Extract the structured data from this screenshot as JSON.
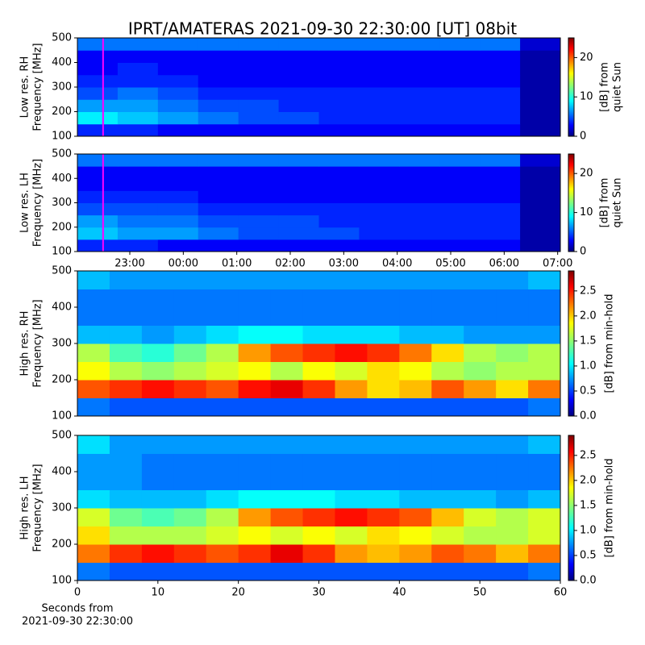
{
  "chart_data": [
    {
      "type": "heatmap",
      "title": "IPRT/AMATERAS 2021-09-30 22:30:00 [UT]   08bit",
      "ylabel": [
        "Low res. RH",
        "Frequency [MHz]"
      ],
      "ylim": [
        100,
        500
      ],
      "yticks": [
        100,
        200,
        300,
        400,
        500
      ],
      "xlim": [
        22.02,
        31.05
      ],
      "marker_x": 22.5,
      "marker_color": "#ff00ff",
      "colormap": "jet",
      "colorbar": {
        "label": [
          "[dB] from",
          "quiet Sun"
        ],
        "zlim": [
          0,
          25
        ],
        "ticks": [
          0,
          10,
          20
        ]
      },
      "z": [
        [
          4,
          4,
          3,
          3,
          3,
          3,
          3,
          3,
          3,
          3,
          3,
          1
        ],
        [
          9,
          8,
          7,
          6,
          5,
          5,
          4,
          4,
          4,
          4,
          4,
          1
        ],
        [
          7,
          7,
          6,
          5,
          5,
          4,
          4,
          4,
          4,
          4,
          4,
          1
        ],
        [
          5,
          6,
          5,
          4,
          4,
          4,
          4,
          4,
          4,
          4,
          4,
          1
        ],
        [
          4,
          4,
          4,
          3,
          3,
          3,
          3,
          3,
          3,
          3,
          3,
          1
        ],
        [
          3,
          4,
          3,
          3,
          3,
          3,
          3,
          3,
          3,
          3,
          3,
          1
        ],
        [
          3,
          3,
          3,
          3,
          3,
          3,
          3,
          3,
          3,
          3,
          3,
          1
        ],
        [
          6,
          6,
          6,
          6,
          6,
          6,
          6,
          6,
          6,
          6,
          6,
          2
        ]
      ]
    },
    {
      "type": "heatmap",
      "ylabel": [
        "Low res. LH",
        "Frequency [MHz]"
      ],
      "ylim": [
        100,
        500
      ],
      "yticks": [
        100,
        200,
        300,
        400,
        500
      ],
      "xlim": [
        22.02,
        31.05
      ],
      "marker_x": 22.5,
      "marker_color": "#ff00ff",
      "colormap": "jet",
      "xticks": [
        {
          "value": 23,
          "label": "23:00"
        },
        {
          "value": 24,
          "label": "00:00"
        },
        {
          "value": 25,
          "label": "01:00"
        },
        {
          "value": 26,
          "label": "02:00"
        },
        {
          "value": 27,
          "label": "03:00"
        },
        {
          "value": 28,
          "label": "04:00"
        },
        {
          "value": 29,
          "label": "05:00"
        },
        {
          "value": 30,
          "label": "06:00"
        },
        {
          "value": 31,
          "label": "07:00"
        }
      ],
      "colorbar": {
        "label": [
          "[dB] from",
          "quiet Sun"
        ],
        "zlim": [
          0,
          25
        ],
        "ticks": [
          0,
          10,
          20
        ]
      },
      "z": [
        [
          4,
          4,
          3,
          3,
          3,
          3,
          3,
          3,
          3,
          3,
          3,
          1
        ],
        [
          8,
          7,
          7,
          6,
          5,
          5,
          5,
          4,
          4,
          4,
          4,
          1
        ],
        [
          7,
          6,
          6,
          5,
          5,
          5,
          4,
          4,
          4,
          4,
          4,
          1
        ],
        [
          5,
          5,
          5,
          4,
          4,
          4,
          4,
          4,
          4,
          4,
          4,
          1
        ],
        [
          4,
          4,
          4,
          3,
          3,
          3,
          3,
          3,
          3,
          3,
          3,
          1
        ],
        [
          3,
          3,
          3,
          3,
          3,
          3,
          3,
          3,
          3,
          3,
          3,
          1
        ],
        [
          3,
          3,
          3,
          3,
          3,
          3,
          3,
          3,
          3,
          3,
          3,
          1
        ],
        [
          6,
          6,
          6,
          6,
          6,
          6,
          6,
          6,
          6,
          6,
          6,
          2
        ]
      ]
    },
    {
      "type": "heatmap",
      "ylabel": [
        "High res. RH",
        "Frequency [MHz]"
      ],
      "ylim": [
        100,
        500
      ],
      "yticks": [
        100,
        200,
        300,
        400,
        500
      ],
      "xlim": [
        0,
        60
      ],
      "colormap": "jet",
      "colorbar": {
        "label": [
          "[dB] from min-hold"
        ],
        "zlim": [
          0,
          2.9
        ],
        "ticks": [
          {
            "value": 0,
            "label": "0.0"
          },
          0.5,
          {
            "value": 1,
            "label": "1.0"
          },
          1.5,
          {
            "value": 2,
            "label": "2.0"
          },
          2.5
        ]
      },
      "z": [
        [
          0.7,
          0.6,
          0.6,
          0.6,
          0.6,
          0.6,
          0.6,
          0.6,
          0.6,
          0.6,
          0.6,
          0.6,
          0.6,
          0.6,
          0.7
        ],
        [
          2.3,
          2.4,
          2.5,
          2.4,
          2.3,
          2.5,
          2.6,
          2.4,
          2.1,
          1.9,
          2.0,
          2.3,
          2.1,
          1.9,
          2.2
        ],
        [
          1.8,
          1.6,
          1.5,
          1.6,
          1.7,
          1.8,
          1.6,
          1.8,
          1.7,
          1.9,
          1.8,
          1.6,
          1.5,
          1.6,
          1.6
        ],
        [
          1.6,
          1.3,
          1.2,
          1.4,
          1.6,
          2.1,
          2.3,
          2.4,
          2.5,
          2.4,
          2.2,
          1.9,
          1.6,
          1.5,
          1.6
        ],
        [
          0.9,
          0.9,
          0.8,
          0.9,
          1.0,
          1.1,
          1.1,
          1.0,
          1.0,
          1.0,
          0.9,
          0.9,
          0.8,
          0.8,
          0.8
        ],
        [
          0.7,
          0.7,
          0.7,
          0.7,
          0.7,
          0.7,
          0.7,
          0.7,
          0.7,
          0.7,
          0.7,
          0.7,
          0.7,
          0.7,
          0.7
        ],
        [
          0.7,
          0.7,
          0.7,
          0.7,
          0.7,
          0.7,
          0.7,
          0.7,
          0.7,
          0.7,
          0.7,
          0.7,
          0.7,
          0.7,
          0.7
        ],
        [
          0.9,
          0.8,
          0.8,
          0.8,
          0.8,
          0.8,
          0.8,
          0.8,
          0.8,
          0.8,
          0.8,
          0.8,
          0.8,
          0.8,
          0.9
        ]
      ]
    },
    {
      "type": "heatmap",
      "ylabel": [
        "High res. LH",
        "Frequency [MHz]"
      ],
      "ylim": [
        100,
        500
      ],
      "yticks": [
        100,
        200,
        300,
        400,
        500
      ],
      "xlim": [
        0,
        60
      ],
      "xticks": [
        0,
        10,
        20,
        30,
        40,
        50,
        60
      ],
      "xlabel": [
        "Seconds from",
        "2021-09-30 22:30:00"
      ],
      "colormap": "jet",
      "colorbar": {
        "label": [
          "[dB] from min-hold"
        ],
        "zlim": [
          0,
          2.9
        ],
        "ticks": [
          {
            "value": 0,
            "label": "0.0"
          },
          0.5,
          {
            "value": 1,
            "label": "1.0"
          },
          1.5,
          {
            "value": 2,
            "label": "2.0"
          },
          2.5
        ]
      },
      "z": [
        [
          0.7,
          0.6,
          0.6,
          0.6,
          0.6,
          0.6,
          0.6,
          0.6,
          0.6,
          0.6,
          0.6,
          0.6,
          0.6,
          0.6,
          0.7
        ],
        [
          2.2,
          2.4,
          2.5,
          2.4,
          2.3,
          2.4,
          2.6,
          2.4,
          2.1,
          2.0,
          2.1,
          2.3,
          2.2,
          2.0,
          2.2
        ],
        [
          1.9,
          1.6,
          1.6,
          1.6,
          1.7,
          1.8,
          1.7,
          1.8,
          1.7,
          1.9,
          1.8,
          1.7,
          1.6,
          1.6,
          1.7
        ],
        [
          1.7,
          1.4,
          1.3,
          1.4,
          1.6,
          2.1,
          2.3,
          2.4,
          2.5,
          2.4,
          2.3,
          2.0,
          1.7,
          1.6,
          1.7
        ],
        [
          1.0,
          0.9,
          0.9,
          0.9,
          1.0,
          1.1,
          1.1,
          1.1,
          1.0,
          1.0,
          0.9,
          0.9,
          0.9,
          0.8,
          0.9
        ],
        [
          0.8,
          0.8,
          0.7,
          0.7,
          0.7,
          0.7,
          0.7,
          0.7,
          0.7,
          0.7,
          0.7,
          0.7,
          0.7,
          0.7,
          0.7
        ],
        [
          0.8,
          0.8,
          0.7,
          0.7,
          0.7,
          0.7,
          0.7,
          0.7,
          0.7,
          0.7,
          0.7,
          0.7,
          0.7,
          0.7,
          0.7
        ],
        [
          1.0,
          0.8,
          0.8,
          0.8,
          0.8,
          0.8,
          0.8,
          0.8,
          0.8,
          0.8,
          0.8,
          0.8,
          0.8,
          0.8,
          0.9
        ]
      ]
    }
  ]
}
